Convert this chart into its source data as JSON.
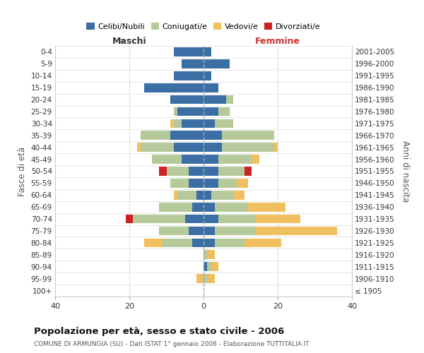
{
  "age_groups": [
    "100+",
    "95-99",
    "90-94",
    "85-89",
    "80-84",
    "75-79",
    "70-74",
    "65-69",
    "60-64",
    "55-59",
    "50-54",
    "45-49",
    "40-44",
    "35-39",
    "30-34",
    "25-29",
    "20-24",
    "15-19",
    "10-14",
    "5-9",
    "0-4"
  ],
  "birth_years": [
    "≤ 1905",
    "1906-1910",
    "1911-1915",
    "1916-1920",
    "1921-1925",
    "1926-1930",
    "1931-1935",
    "1936-1940",
    "1941-1945",
    "1946-1950",
    "1951-1955",
    "1956-1960",
    "1961-1965",
    "1966-1970",
    "1971-1975",
    "1976-1980",
    "1981-1985",
    "1986-1990",
    "1991-1995",
    "1996-2000",
    "2001-2005"
  ],
  "colors": {
    "celibe": "#3b6ea5",
    "coniugato": "#b5c99a",
    "vedovo": "#f0c060",
    "divorziato": "#cc2222"
  },
  "maschi": {
    "celibe": [
      0,
      0,
      0,
      0,
      3,
      4,
      5,
      3,
      2,
      4,
      4,
      6,
      8,
      9,
      6,
      7,
      9,
      16,
      8,
      6,
      8
    ],
    "coniugato": [
      0,
      0,
      0,
      0,
      8,
      8,
      14,
      9,
      5,
      5,
      6,
      8,
      9,
      8,
      2,
      1,
      0,
      0,
      0,
      0,
      0
    ],
    "vedovo": [
      0,
      2,
      0,
      0,
      5,
      0,
      0,
      0,
      1,
      0,
      0,
      0,
      1,
      0,
      1,
      0,
      0,
      0,
      0,
      0,
      0
    ],
    "divorziato": [
      0,
      0,
      0,
      0,
      0,
      0,
      2,
      0,
      0,
      0,
      2,
      0,
      0,
      0,
      0,
      0,
      0,
      0,
      0,
      0,
      0
    ]
  },
  "femmine": {
    "nubile": [
      0,
      0,
      1,
      0,
      3,
      3,
      4,
      3,
      2,
      4,
      4,
      4,
      5,
      5,
      3,
      4,
      6,
      4,
      2,
      7,
      2
    ],
    "coniugata": [
      0,
      1,
      1,
      1,
      8,
      11,
      10,
      9,
      6,
      5,
      7,
      9,
      14,
      14,
      5,
      3,
      2,
      0,
      0,
      0,
      0
    ],
    "vedova": [
      0,
      2,
      2,
      2,
      10,
      22,
      12,
      10,
      3,
      3,
      0,
      2,
      1,
      0,
      0,
      0,
      0,
      0,
      0,
      0,
      0
    ],
    "divorziata": [
      0,
      0,
      0,
      0,
      0,
      0,
      0,
      0,
      0,
      0,
      2,
      0,
      0,
      0,
      0,
      0,
      0,
      0,
      0,
      0,
      0
    ]
  },
  "xlim": 40,
  "title": "Popolazione per età, sesso e stato civile - 2006",
  "subtitle": "COMUNE DI ARMUNGIA (SU) - Dati ISTAT 1° gennaio 2006 - Elaborazione TUTTITALIA.IT",
  "ylabel_left": "Fasce di età",
  "ylabel_right": "Anni di nascita",
  "maschi_label_color": "#333333",
  "femmine_label_color": "#cc3333",
  "background_color": "#ffffff"
}
